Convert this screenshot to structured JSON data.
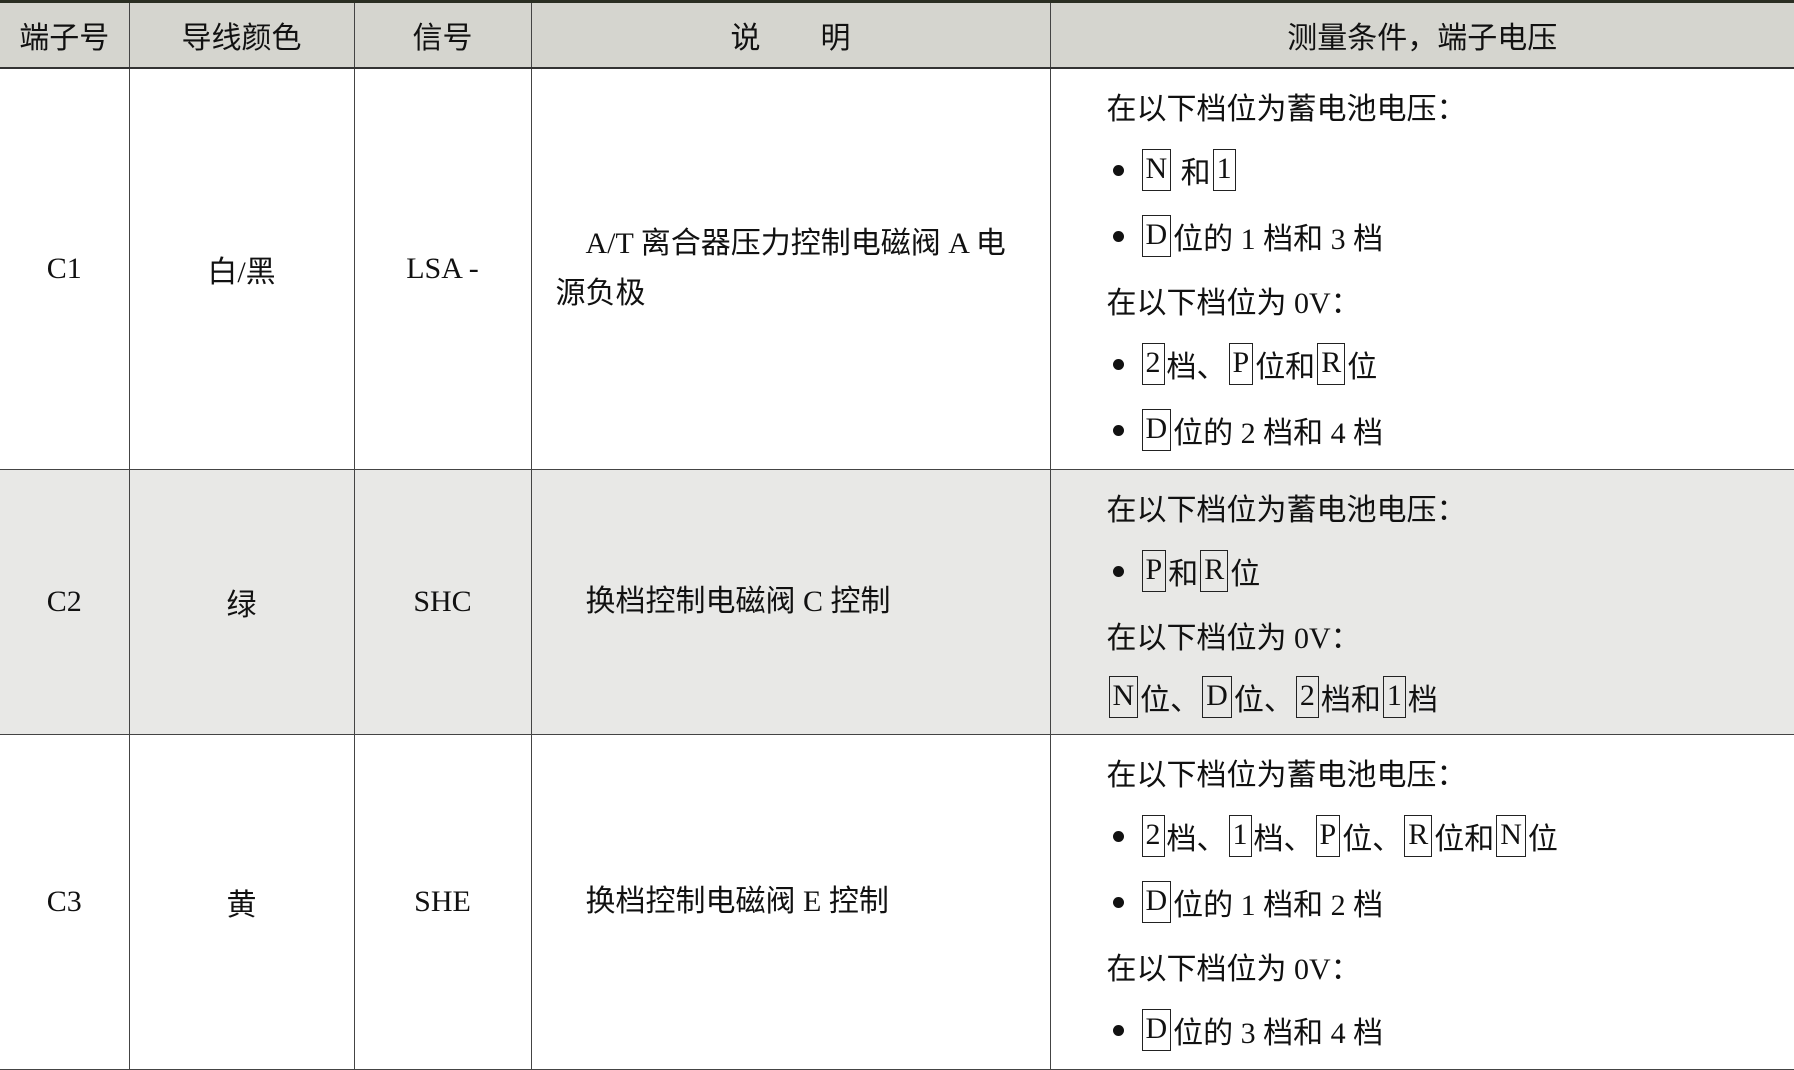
{
  "headers": [
    "端子号",
    "导线颜色",
    "信号",
    "说　　明",
    "测量条件，端子电压"
  ],
  "rows": [
    {
      "terminal": "C1",
      "wire": "白/黑",
      "signal": "LSA -",
      "description": "A/T 离合器压力控制电磁阀 A 电源负极",
      "conditions": [
        {
          "bullet": false,
          "parts": [
            {
              "t": "在以下档位为蓄电池电压："
            }
          ]
        },
        {
          "bullet": true,
          "parts": [
            {
              "t": "N",
              "box": true
            },
            {
              "t": " 和"
            },
            {
              "t": "1",
              "box": true
            }
          ]
        },
        {
          "bullet": true,
          "parts": [
            {
              "t": "D",
              "box": true
            },
            {
              "t": "位的 1 档和 3 档"
            }
          ]
        },
        {
          "bullet": false,
          "parts": [
            {
              "t": "在以下档位为 0V："
            }
          ]
        },
        {
          "bullet": true,
          "parts": [
            {
              "t": "2",
              "box": true
            },
            {
              "t": "档、"
            },
            {
              "t": "P",
              "box": true
            },
            {
              "t": "位和"
            },
            {
              "t": "R",
              "box": true
            },
            {
              "t": "位"
            }
          ]
        },
        {
          "bullet": true,
          "parts": [
            {
              "t": "D",
              "box": true
            },
            {
              "t": "位的 2 档和 4 档"
            }
          ]
        }
      ]
    },
    {
      "terminal": "C2",
      "wire": "绿",
      "signal": "SHC",
      "description": "换档控制电磁阀 C 控制",
      "conditions": [
        {
          "bullet": false,
          "parts": [
            {
              "t": "在以下档位为蓄电池电压："
            }
          ]
        },
        {
          "bullet": true,
          "parts": [
            {
              "t": "P",
              "box": true
            },
            {
              "t": "和"
            },
            {
              "t": "R",
              "box": true
            },
            {
              "t": "位"
            }
          ]
        },
        {
          "bullet": false,
          "parts": [
            {
              "t": "在以下档位为 0V："
            }
          ]
        },
        {
          "bullet": false,
          "parts": [
            {
              "t": "N",
              "box": true
            },
            {
              "t": "位、"
            },
            {
              "t": "D",
              "box": true
            },
            {
              "t": "位、"
            },
            {
              "t": "2",
              "box": true
            },
            {
              "t": "档和"
            },
            {
              "t": "1",
              "box": true
            },
            {
              "t": "档"
            }
          ]
        }
      ]
    },
    {
      "terminal": "C3",
      "wire": "黄",
      "signal": "SHE",
      "description": "换档控制电磁阀 E 控制",
      "conditions": [
        {
          "bullet": false,
          "parts": [
            {
              "t": "在以下档位为蓄电池电压："
            }
          ]
        },
        {
          "bullet": true,
          "parts": [
            {
              "t": "2",
              "box": true
            },
            {
              "t": "档、"
            },
            {
              "t": "1",
              "box": true
            },
            {
              "t": "档、"
            },
            {
              "t": "P",
              "box": true
            },
            {
              "t": "位、"
            },
            {
              "t": "R",
              "box": true
            },
            {
              "t": "位和"
            },
            {
              "t": "N",
              "box": true
            },
            {
              "t": "位"
            }
          ]
        },
        {
          "bullet": true,
          "parts": [
            {
              "t": "D",
              "box": true
            },
            {
              "t": "位的 1 档和 2 档"
            }
          ]
        },
        {
          "bullet": false,
          "parts": [
            {
              "t": "在以下档位为 0V："
            }
          ]
        },
        {
          "bullet": true,
          "parts": [
            {
              "t": "D",
              "box": true
            },
            {
              "t": "位的 3 档和 4 档"
            }
          ]
        }
      ]
    }
  ]
}
